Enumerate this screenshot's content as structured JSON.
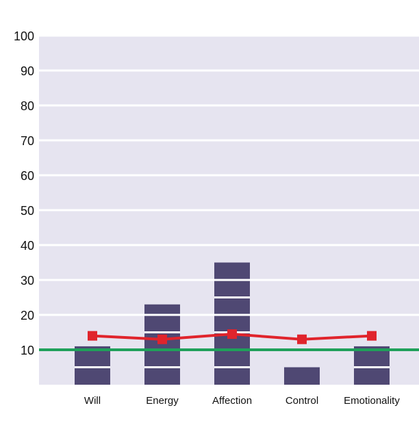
{
  "chart_data": {
    "type": "bar",
    "title": "",
    "xlabel": "",
    "ylabel": "",
    "categories": [
      "Will",
      "Energy",
      "Affection",
      "Control",
      "Emotionality"
    ],
    "bars": {
      "values": [
        11,
        23,
        35,
        5,
        11
      ],
      "color": "#4f4873"
    },
    "line": {
      "values": [
        14,
        13,
        14.5,
        13,
        14
      ],
      "color": "#e0242c",
      "marker": "square"
    },
    "reference_line": {
      "value": 10,
      "color": "#1fa05a"
    },
    "ylim": [
      0,
      100
    ],
    "yticks": [
      "10",
      "20",
      "30",
      "40",
      "50",
      "60",
      "70",
      "80",
      "90",
      "100"
    ],
    "grid": true,
    "plot_background": "#e6e4f0",
    "gridline_color": "#ffffff",
    "legend": "none"
  }
}
